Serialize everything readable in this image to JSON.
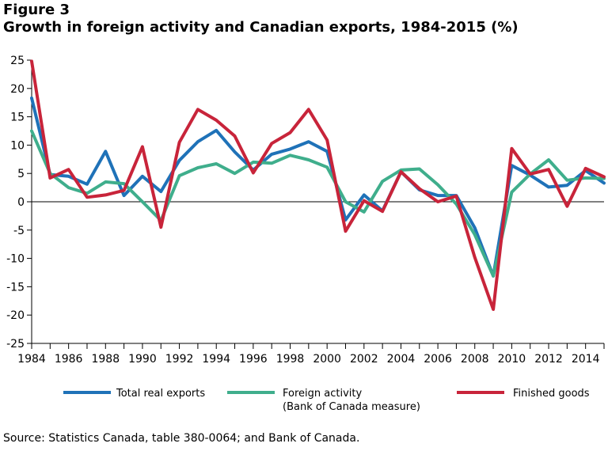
{
  "figure_label": "Figure 3",
  "title": "Growth in foreign activity and Canadian exports, 1984-2015 (%)",
  "source": "Source: Statistics Canada, table 380-0064; and Bank of Canada.",
  "chart_data": {
    "type": "line",
    "title": "Growth in foreign activity and Canadian exports, 1984-2015 (%)",
    "xlabel": "",
    "ylabel": "",
    "ylim": [
      -25,
      25
    ],
    "yticks": [
      25,
      20,
      15,
      10,
      5,
      0,
      -5,
      -10,
      -15,
      -20,
      -25
    ],
    "xticks": [
      "1984",
      "1986",
      "1988",
      "1990",
      "1992",
      "1994",
      "1996",
      "1998",
      "2000",
      "2002",
      "2004",
      "2006",
      "2008",
      "2010",
      "2012",
      "2014"
    ],
    "x": [
      1984,
      1985,
      1986,
      1987,
      1988,
      1989,
      1990,
      1991,
      1992,
      1993,
      1994,
      1995,
      1996,
      1997,
      1998,
      1999,
      2000,
      2001,
      2002,
      2003,
      2004,
      2005,
      2006,
      2007,
      2008,
      2009,
      2010,
      2011,
      2012,
      2013,
      2014,
      2015
    ],
    "grid": false,
    "legend_position": "bottom",
    "series": [
      {
        "name": "Total real exports",
        "color": "#1f72b8",
        "values": [
          18.3,
          4.8,
          4.5,
          3.1,
          8.9,
          1.1,
          4.5,
          1.8,
          7.3,
          10.6,
          12.6,
          8.8,
          5.6,
          8.4,
          9.3,
          10.6,
          8.9,
          -3.2,
          1.2,
          -1.6,
          5.3,
          2.1,
          1.1,
          1.1,
          -4.6,
          -13.1,
          6.4,
          4.7,
          2.6,
          2.9,
          5.5,
          3.3
        ]
      },
      {
        "name": "Foreign activity",
        "name_line2": "(Bank of Canada measure)",
        "color": "#3fae8c",
        "values": [
          12.5,
          5.0,
          2.5,
          1.5,
          3.5,
          3.2,
          0.0,
          -3.3,
          4.6,
          6.0,
          6.7,
          5.0,
          7.0,
          6.8,
          8.2,
          7.4,
          6.1,
          0.0,
          -1.8,
          3.6,
          5.6,
          5.8,
          3.0,
          -0.4,
          -5.8,
          -13.1,
          1.7,
          4.9,
          7.4,
          3.8,
          4.2,
          4.1
        ]
      },
      {
        "name": "Finished goods",
        "color": "#c8243a",
        "values": [
          24.8,
          4.2,
          5.7,
          0.8,
          1.2,
          2.0,
          9.7,
          -4.5,
          10.5,
          16.3,
          14.4,
          11.6,
          5.1,
          10.3,
          12.2,
          16.3,
          10.9,
          -5.2,
          0.2,
          -1.7,
          5.3,
          2.3,
          0.0,
          1.0,
          -9.8,
          -19.0,
          9.4,
          4.9,
          5.7,
          -0.8,
          5.9,
          4.4
        ]
      }
    ]
  }
}
